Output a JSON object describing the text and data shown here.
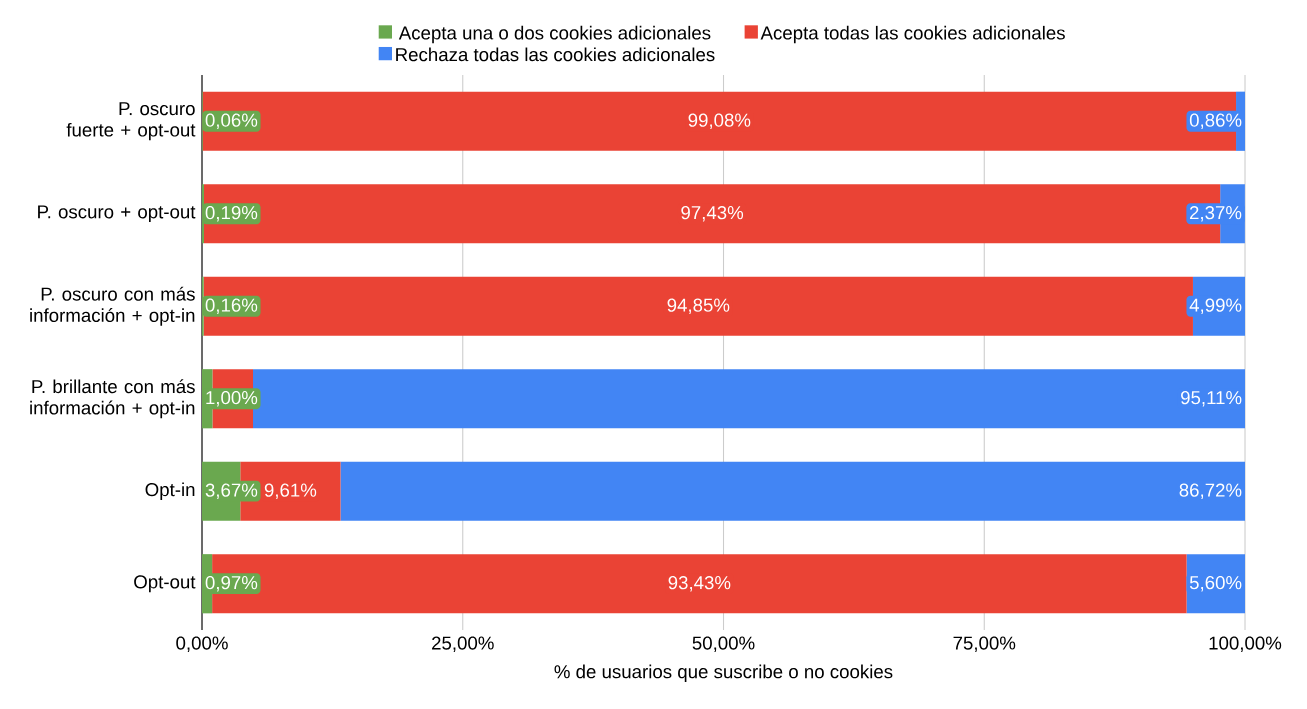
{
  "chart_data": {
    "type": "bar",
    "orientation": "horizontal",
    "stacked": true,
    "xlabel": "% de usuarios que suscribe o no cookies",
    "categories": [
      "P. oscuro fuerte + opt-out",
      "P. oscuro + opt-out",
      "P. oscuro con más información + opt-in",
      "P. brillante con más información + opt-in",
      "Opt-in",
      "Opt-out"
    ],
    "series": [
      {
        "name": "Acepta una o dos cookies adicionales",
        "color": "#6aa84f",
        "values": [
          0.06,
          0.19,
          0.16,
          1.0,
          3.67,
          0.97
        ],
        "value_labels": [
          "0,06%",
          "0,19%",
          "0,16%",
          "1,00%",
          "3,67%",
          "0,97%"
        ]
      },
      {
        "name": "Acepta todas las cookies adicionales",
        "color": "#ea4335",
        "values": [
          99.08,
          97.43,
          94.85,
          3.89,
          9.61,
          93.43
        ],
        "value_labels": [
          "99,08%",
          "97,43%",
          "94,85%",
          null,
          "9,61%",
          "93,43%"
        ]
      },
      {
        "name": "Rechaza todas las cookies adicionales",
        "color": "#4285f4",
        "values": [
          0.86,
          2.37,
          4.99,
          95.11,
          86.72,
          5.6
        ],
        "value_labels": [
          "0,86%",
          "2,37%",
          "4,99%",
          "95,11%",
          "86,72%",
          "5,60%"
        ]
      }
    ],
    "xlim": [
      0,
      100
    ],
    "xticks": [
      {
        "value": 0,
        "label": "0,00%"
      },
      {
        "value": 25,
        "label": "25,00%"
      },
      {
        "value": 50,
        "label": "50,00%"
      },
      {
        "value": 75,
        "label": "75,00%"
      },
      {
        "value": 100,
        "label": "100,00%"
      }
    ],
    "grid": "x",
    "legend": "top"
  }
}
